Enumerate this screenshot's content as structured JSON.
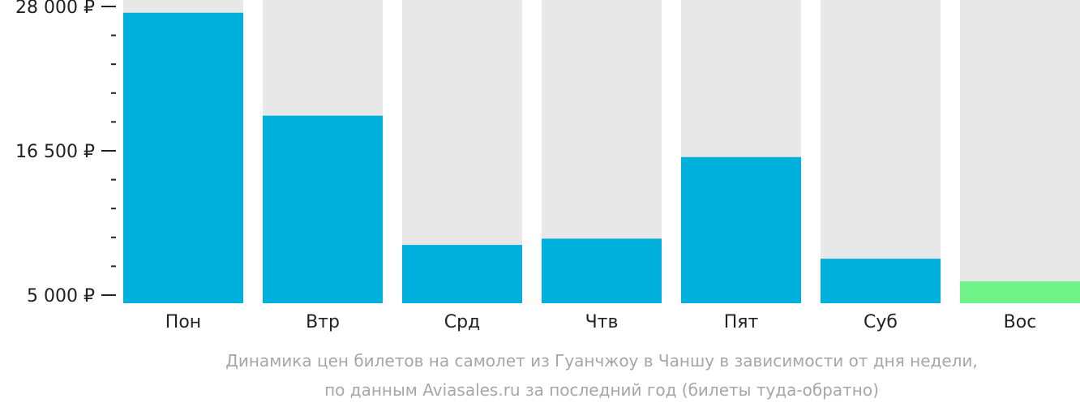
{
  "chart_data": {
    "type": "bar",
    "categories": [
      "Пон",
      "Втр",
      "Срд",
      "Чтв",
      "Пят",
      "Суб",
      "Вос"
    ],
    "values": [
      27500,
      19300,
      9000,
      9500,
      16000,
      7900,
      6100
    ],
    "ylim": [
      5000,
      28000
    ],
    "y_tick_labels": [
      "28 000 ₽",
      "16 500 ₽",
      "5 000 ₽"
    ],
    "y_major_ticks": [
      28000,
      16500,
      5000
    ],
    "y_minor_step": 2300,
    "grid": false,
    "legend": "none",
    "colors": {
      "bar": "#00b0dc",
      "min_bar": "#6ff288",
      "track": "#e8e8e8",
      "tick": "#222222",
      "caption": "#a6a6a6"
    },
    "caption_lines": [
      "Динамика цен билетов на самолет из Гуанчжоу в Чаншу в зависимости от дня недели,",
      "по данным Aviasales.ru за последний год (билеты туда-обратно)"
    ]
  }
}
